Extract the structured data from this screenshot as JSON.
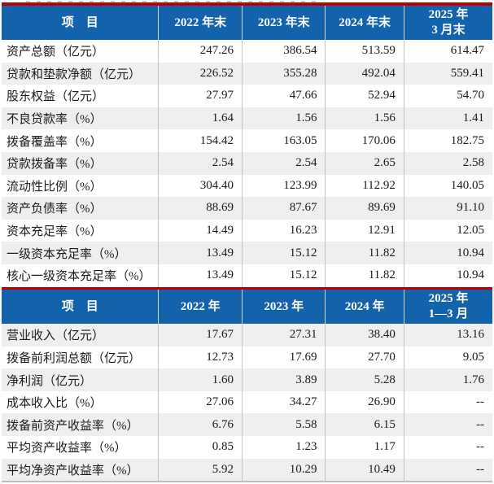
{
  "colors": {
    "header_bg": "#1262ac",
    "header_text": "#ffffff",
    "rule_red": "#c00000",
    "stripe": "#efefef",
    "divider": "#c3c3c3",
    "header_divider": "#d4d4d4",
    "text": "#1a1a1a"
  },
  "tables": [
    {
      "title": "period-end-indicators",
      "headers": [
        "项　目",
        "2022 年末",
        "2023 年末",
        "2024 年末",
        "2025 年\n3 月末"
      ],
      "rows": [
        {
          "label": "资产总额（亿元）",
          "values": [
            "247.26",
            "386.54",
            "513.59",
            "614.47"
          ]
        },
        {
          "label": "贷款和垫款净额（亿元）",
          "values": [
            "226.52",
            "355.28",
            "492.04",
            "559.41"
          ]
        },
        {
          "label": "股东权益（亿元）",
          "values": [
            "27.97",
            "47.66",
            "52.94",
            "54.70"
          ]
        },
        {
          "label": "不良贷款率（%）",
          "values": [
            "1.64",
            "1.56",
            "1.56",
            "1.41"
          ]
        },
        {
          "label": "拨备覆盖率（%）",
          "values": [
            "154.42",
            "163.05",
            "170.06",
            "182.75"
          ]
        },
        {
          "label": "贷款拨备率（%）",
          "values": [
            "2.54",
            "2.54",
            "2.65",
            "2.58"
          ]
        },
        {
          "label": "流动性比例（%）",
          "values": [
            "304.40",
            "123.99",
            "112.92",
            "140.05"
          ]
        },
        {
          "label": "资产负债率（%）",
          "values": [
            "88.69",
            "87.67",
            "89.69",
            "91.10"
          ]
        },
        {
          "label": "资本充足率（%）",
          "values": [
            "14.49",
            "16.23",
            "12.91",
            "12.05"
          ]
        },
        {
          "label": "一级资本充足率（%）",
          "values": [
            "13.49",
            "15.12",
            "11.82",
            "10.94"
          ]
        },
        {
          "label": "核心一级资本充足率（%）",
          "values": [
            "13.49",
            "15.12",
            "11.82",
            "10.94"
          ]
        }
      ]
    },
    {
      "title": "period-indicators",
      "headers": [
        "项　目",
        "2022 年",
        "2023 年",
        "2024 年",
        "2025 年\n1—3 月"
      ],
      "rows": [
        {
          "label": "营业收入（亿元）",
          "values": [
            "17.67",
            "27.31",
            "38.40",
            "13.16"
          ]
        },
        {
          "label": "拨备前利润总额（亿元）",
          "values": [
            "12.73",
            "17.69",
            "27.70",
            "9.05"
          ]
        },
        {
          "label": "净利润（亿元）",
          "values": [
            "1.60",
            "3.89",
            "5.28",
            "1.76"
          ]
        },
        {
          "label": "成本收入比（%）",
          "values": [
            "27.06",
            "34.27",
            "26.90",
            "--"
          ]
        },
        {
          "label": "拨备前资产收益率（%）",
          "values": [
            "6.76",
            "5.58",
            "6.15",
            "--"
          ]
        },
        {
          "label": "平均资产收益率（%）",
          "values": [
            "0.85",
            "1.23",
            "1.17",
            "--"
          ]
        },
        {
          "label": "平均净资产收益率（%）",
          "values": [
            "5.92",
            "10.29",
            "10.49",
            "--"
          ]
        }
      ]
    }
  ]
}
